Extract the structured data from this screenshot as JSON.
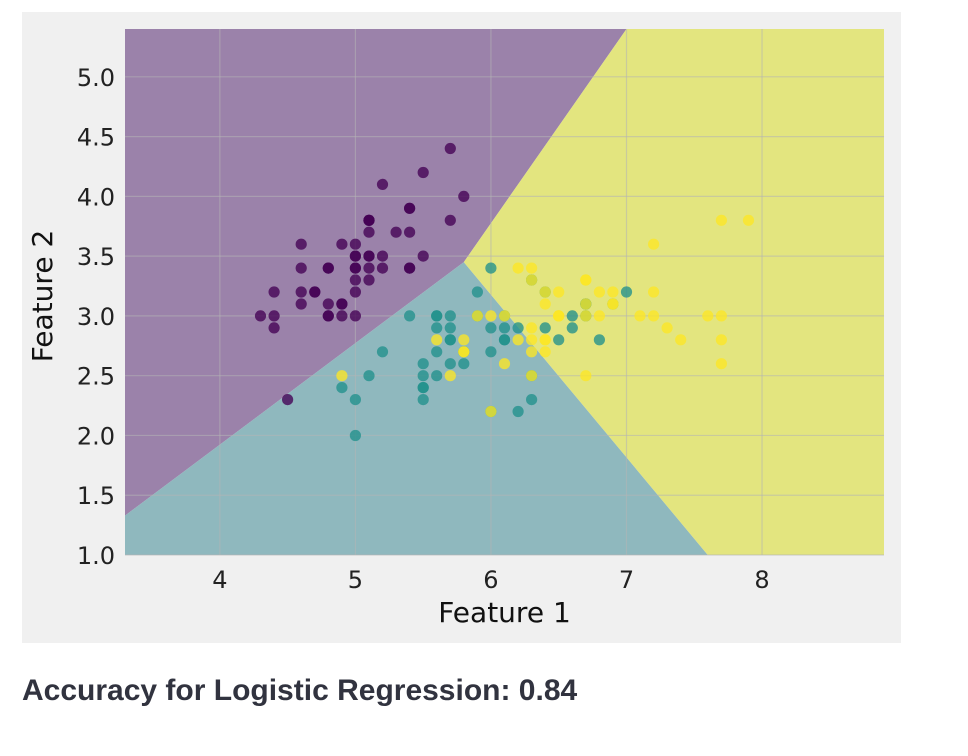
{
  "result": {
    "accuracy_text": "Accuracy for Logistic Regression: 0.84"
  },
  "colors": {
    "panel_background": "#f0f0f0",
    "class_0": "#440154",
    "class_1": "#21918c",
    "class_2": "#fde725",
    "region_0": "#9b82aa",
    "region_1": "#8fb8be",
    "region_2": "#e3e57f",
    "grid": "#b4b4b4",
    "text": "#31333f"
  },
  "chart_data": {
    "type": "scatter",
    "title": "",
    "xlabel": "Feature 1",
    "ylabel": "Feature 2",
    "xlim": [
      3.3,
      8.9
    ],
    "ylim": [
      1.0,
      5.4
    ],
    "xticks": [
      4,
      5,
      6,
      7,
      8
    ],
    "xtick_labels": [
      "4",
      "5",
      "6",
      "7",
      "8"
    ],
    "yticks": [
      1.0,
      1.5,
      2.0,
      2.5,
      3.0,
      3.5,
      4.0,
      4.5,
      5.0
    ],
    "ytick_labels": [
      "1.0",
      "1.5",
      "2.0",
      "2.5",
      "3.0",
      "3.5",
      "4.0",
      "4.5",
      "5.0"
    ],
    "grid": true,
    "legend": "none",
    "decision_regions": [
      {
        "class": 0,
        "polygon": [
          [
            3.3,
            5.4
          ],
          [
            7.0,
            5.4
          ],
          [
            5.8,
            3.45
          ],
          [
            3.3,
            1.33
          ]
        ]
      },
      {
        "class": 1,
        "polygon": [
          [
            3.3,
            1.33
          ],
          [
            5.8,
            3.45
          ],
          [
            7.6,
            1.0
          ],
          [
            3.3,
            1.0
          ]
        ]
      },
      {
        "class": 2,
        "polygon": [
          [
            7.0,
            5.4
          ],
          [
            8.9,
            5.4
          ],
          [
            8.9,
            1.0
          ],
          [
            7.6,
            1.0
          ],
          [
            5.8,
            3.45
          ]
        ]
      }
    ],
    "series": [
      {
        "class": 0,
        "points": [
          [
            5.1,
            3.5
          ],
          [
            4.9,
            3.0
          ],
          [
            4.7,
            3.2
          ],
          [
            4.6,
            3.1
          ],
          [
            5.0,
            3.6
          ],
          [
            5.4,
            3.9
          ],
          [
            4.6,
            3.4
          ],
          [
            5.0,
            3.4
          ],
          [
            4.4,
            2.9
          ],
          [
            4.9,
            3.1
          ],
          [
            5.4,
            3.7
          ],
          [
            4.8,
            3.4
          ],
          [
            4.8,
            3.0
          ],
          [
            4.3,
            3.0
          ],
          [
            5.8,
            4.0
          ],
          [
            5.7,
            4.4
          ],
          [
            5.4,
            3.9
          ],
          [
            5.1,
            3.5
          ],
          [
            5.7,
            3.8
          ],
          [
            5.1,
            3.8
          ],
          [
            5.4,
            3.4
          ],
          [
            5.1,
            3.7
          ],
          [
            4.6,
            3.6
          ],
          [
            5.1,
            3.3
          ],
          [
            4.8,
            3.4
          ],
          [
            5.0,
            3.0
          ],
          [
            5.0,
            3.4
          ],
          [
            5.2,
            3.5
          ],
          [
            5.2,
            3.4
          ],
          [
            4.7,
            3.2
          ],
          [
            4.8,
            3.1
          ],
          [
            5.4,
            3.4
          ],
          [
            5.2,
            4.1
          ],
          [
            5.5,
            4.2
          ],
          [
            4.9,
            3.1
          ],
          [
            5.0,
            3.2
          ],
          [
            5.5,
            3.5
          ],
          [
            4.9,
            3.6
          ],
          [
            4.4,
            3.0
          ],
          [
            5.1,
            3.4
          ],
          [
            5.0,
            3.5
          ],
          [
            4.5,
            2.3
          ],
          [
            4.4,
            3.2
          ],
          [
            5.0,
            3.5
          ],
          [
            5.1,
            3.8
          ],
          [
            4.8,
            3.0
          ],
          [
            5.1,
            3.8
          ],
          [
            4.6,
            3.2
          ],
          [
            5.3,
            3.7
          ],
          [
            5.0,
            3.3
          ]
        ]
      },
      {
        "class": 1,
        "points": [
          [
            7.0,
            3.2
          ],
          [
            6.4,
            3.2
          ],
          [
            6.9,
            3.1
          ],
          [
            5.5,
            2.3
          ],
          [
            6.5,
            2.8
          ],
          [
            5.7,
            2.8
          ],
          [
            6.3,
            3.3
          ],
          [
            4.9,
            2.4
          ],
          [
            6.6,
            2.9
          ],
          [
            5.2,
            2.7
          ],
          [
            5.0,
            2.0
          ],
          [
            5.9,
            3.0
          ],
          [
            6.0,
            2.2
          ],
          [
            6.1,
            2.9
          ],
          [
            5.6,
            2.9
          ],
          [
            6.7,
            3.1
          ],
          [
            5.6,
            3.0
          ],
          [
            5.8,
            2.7
          ],
          [
            6.2,
            2.2
          ],
          [
            5.6,
            2.5
          ],
          [
            5.9,
            3.2
          ],
          [
            6.1,
            2.8
          ],
          [
            6.3,
            2.5
          ],
          [
            6.1,
            2.8
          ],
          [
            6.4,
            2.9
          ],
          [
            6.6,
            3.0
          ],
          [
            6.8,
            2.8
          ],
          [
            6.7,
            3.0
          ],
          [
            6.0,
            2.9
          ],
          [
            5.7,
            2.6
          ],
          [
            5.5,
            2.4
          ],
          [
            5.5,
            2.4
          ],
          [
            5.8,
            2.7
          ],
          [
            6.0,
            2.7
          ],
          [
            5.4,
            3.0
          ],
          [
            6.0,
            3.4
          ],
          [
            6.7,
            3.1
          ],
          [
            6.3,
            2.3
          ],
          [
            5.6,
            3.0
          ],
          [
            5.5,
            2.5
          ],
          [
            5.5,
            2.6
          ],
          [
            6.1,
            3.0
          ],
          [
            5.8,
            2.6
          ],
          [
            5.0,
            2.3
          ],
          [
            5.6,
            2.7
          ],
          [
            5.7,
            3.0
          ],
          [
            5.7,
            2.9
          ],
          [
            6.2,
            2.9
          ],
          [
            5.1,
            2.5
          ],
          [
            5.7,
            2.8
          ]
        ]
      },
      {
        "class": 2,
        "points": [
          [
            6.3,
            3.3
          ],
          [
            5.8,
            2.7
          ],
          [
            7.1,
            3.0
          ],
          [
            6.3,
            2.9
          ],
          [
            6.5,
            3.0
          ],
          [
            7.6,
            3.0
          ],
          [
            4.9,
            2.5
          ],
          [
            7.3,
            2.9
          ],
          [
            6.7,
            2.5
          ],
          [
            7.2,
            3.6
          ],
          [
            6.5,
            3.2
          ],
          [
            6.4,
            2.7
          ],
          [
            6.8,
            3.0
          ],
          [
            5.7,
            2.5
          ],
          [
            5.8,
            2.8
          ],
          [
            6.4,
            3.2
          ],
          [
            6.5,
            3.0
          ],
          [
            7.7,
            3.8
          ],
          [
            7.7,
            2.6
          ],
          [
            6.0,
            2.2
          ],
          [
            6.9,
            3.2
          ],
          [
            5.6,
            2.8
          ],
          [
            7.7,
            2.8
          ],
          [
            6.3,
            2.7
          ],
          [
            6.7,
            3.3
          ],
          [
            7.2,
            3.2
          ],
          [
            6.2,
            2.8
          ],
          [
            6.1,
            3.0
          ],
          [
            6.4,
            2.8
          ],
          [
            7.2,
            3.0
          ],
          [
            7.4,
            2.8
          ],
          [
            7.9,
            3.8
          ],
          [
            6.4,
            2.8
          ],
          [
            6.3,
            2.8
          ],
          [
            6.1,
            2.6
          ],
          [
            7.7,
            3.0
          ],
          [
            6.3,
            3.4
          ],
          [
            6.4,
            3.1
          ],
          [
            6.0,
            3.0
          ],
          [
            6.9,
            3.1
          ],
          [
            6.7,
            3.1
          ],
          [
            6.9,
            3.1
          ],
          [
            5.8,
            2.7
          ],
          [
            6.8,
            3.2
          ],
          [
            6.7,
            3.3
          ],
          [
            6.7,
            3.0
          ],
          [
            6.3,
            2.5
          ],
          [
            6.5,
            3.0
          ],
          [
            6.2,
            3.4
          ],
          [
            5.9,
            3.0
          ]
        ]
      }
    ]
  }
}
